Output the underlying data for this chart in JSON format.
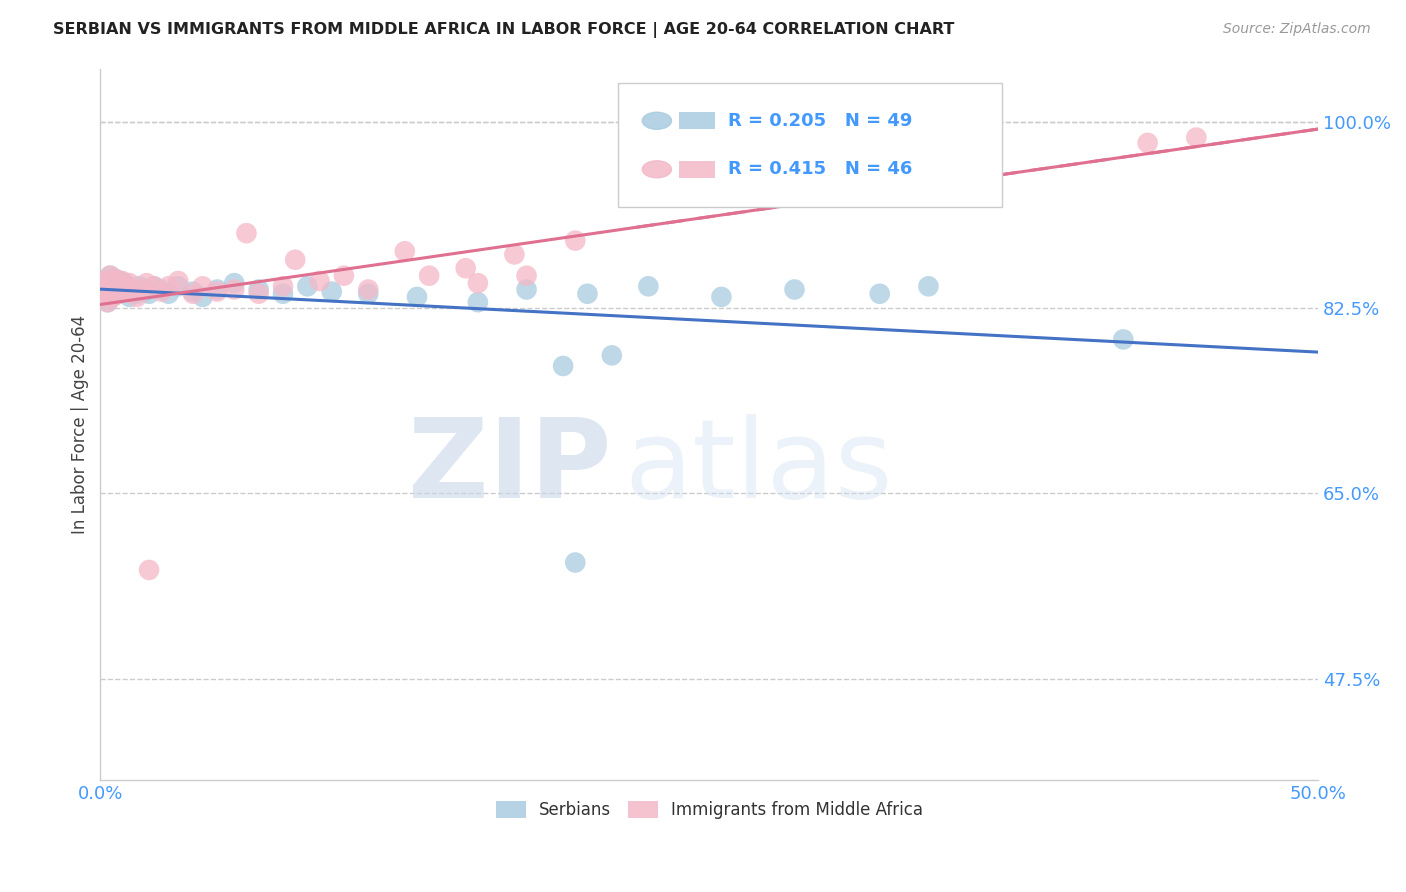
{
  "title": "SERBIAN VS IMMIGRANTS FROM MIDDLE AFRICA IN LABOR FORCE | AGE 20-64 CORRELATION CHART",
  "source": "Source: ZipAtlas.com",
  "ylabel_label": "In Labor Force | Age 20-64",
  "xlim": [
    0.0,
    0.5
  ],
  "ylim": [
    0.38,
    1.05
  ],
  "ytick_vals": [
    0.475,
    0.65,
    0.825,
    1.0
  ],
  "xtick_vals": [
    0.0,
    0.5
  ],
  "legend_labels": [
    "Serbians",
    "Immigrants from Middle Africa"
  ],
  "blue_color": "#a8cce0",
  "pink_color": "#f4b8c8",
  "blue_line_color": "#4472c4",
  "pink_line_color": "#e07090",
  "R_blue": 0.205,
  "N_blue": 49,
  "R_pink": 0.415,
  "N_pink": 46,
  "blue_x": [
    0.001,
    0.002,
    0.002,
    0.003,
    0.003,
    0.004,
    0.004,
    0.005,
    0.005,
    0.006,
    0.006,
    0.007,
    0.008,
    0.008,
    0.009,
    0.01,
    0.01,
    0.012,
    0.013,
    0.015,
    0.016,
    0.018,
    0.02,
    0.022,
    0.025,
    0.028,
    0.032,
    0.038,
    0.042,
    0.048,
    0.055,
    0.065,
    0.075,
    0.085,
    0.095,
    0.11,
    0.13,
    0.155,
    0.175,
    0.2,
    0.225,
    0.255,
    0.285,
    0.32,
    0.34,
    0.19,
    0.21,
    0.42,
    0.195
  ],
  "blue_y": [
    0.845,
    0.838,
    0.85,
    0.842,
    0.83,
    0.855,
    0.84,
    0.848,
    0.835,
    0.852,
    0.845,
    0.838,
    0.85,
    0.842,
    0.845,
    0.848,
    0.84,
    0.835,
    0.842,
    0.838,
    0.845,
    0.84,
    0.838,
    0.845,
    0.842,
    0.838,
    0.845,
    0.84,
    0.835,
    0.842,
    0.848,
    0.842,
    0.838,
    0.845,
    0.84,
    0.838,
    0.835,
    0.83,
    0.842,
    0.838,
    0.845,
    0.835,
    0.842,
    0.838,
    0.845,
    0.77,
    0.78,
    0.795,
    0.585
  ],
  "pink_x": [
    0.001,
    0.002,
    0.002,
    0.003,
    0.003,
    0.004,
    0.004,
    0.005,
    0.005,
    0.006,
    0.007,
    0.008,
    0.009,
    0.01,
    0.011,
    0.012,
    0.013,
    0.015,
    0.017,
    0.019,
    0.022,
    0.025,
    0.028,
    0.032,
    0.038,
    0.042,
    0.048,
    0.055,
    0.065,
    0.075,
    0.09,
    0.11,
    0.135,
    0.155,
    0.175,
    0.06,
    0.08,
    0.1,
    0.125,
    0.15,
    0.17,
    0.195,
    0.27,
    0.43,
    0.45,
    0.02
  ],
  "pink_y": [
    0.842,
    0.85,
    0.838,
    0.845,
    0.83,
    0.855,
    0.84,
    0.848,
    0.835,
    0.852,
    0.845,
    0.838,
    0.85,
    0.842,
    0.845,
    0.848,
    0.84,
    0.835,
    0.842,
    0.848,
    0.845,
    0.84,
    0.845,
    0.85,
    0.838,
    0.845,
    0.84,
    0.842,
    0.838,
    0.845,
    0.85,
    0.842,
    0.855,
    0.848,
    0.855,
    0.895,
    0.87,
    0.855,
    0.878,
    0.862,
    0.875,
    0.888,
    0.96,
    0.98,
    0.985,
    0.578
  ],
  "watermark_zip": "ZIP",
  "watermark_atlas": "atlas",
  "grid_color": "#cccccc",
  "background_color": "#ffffff",
  "tick_color": "#4499ff"
}
